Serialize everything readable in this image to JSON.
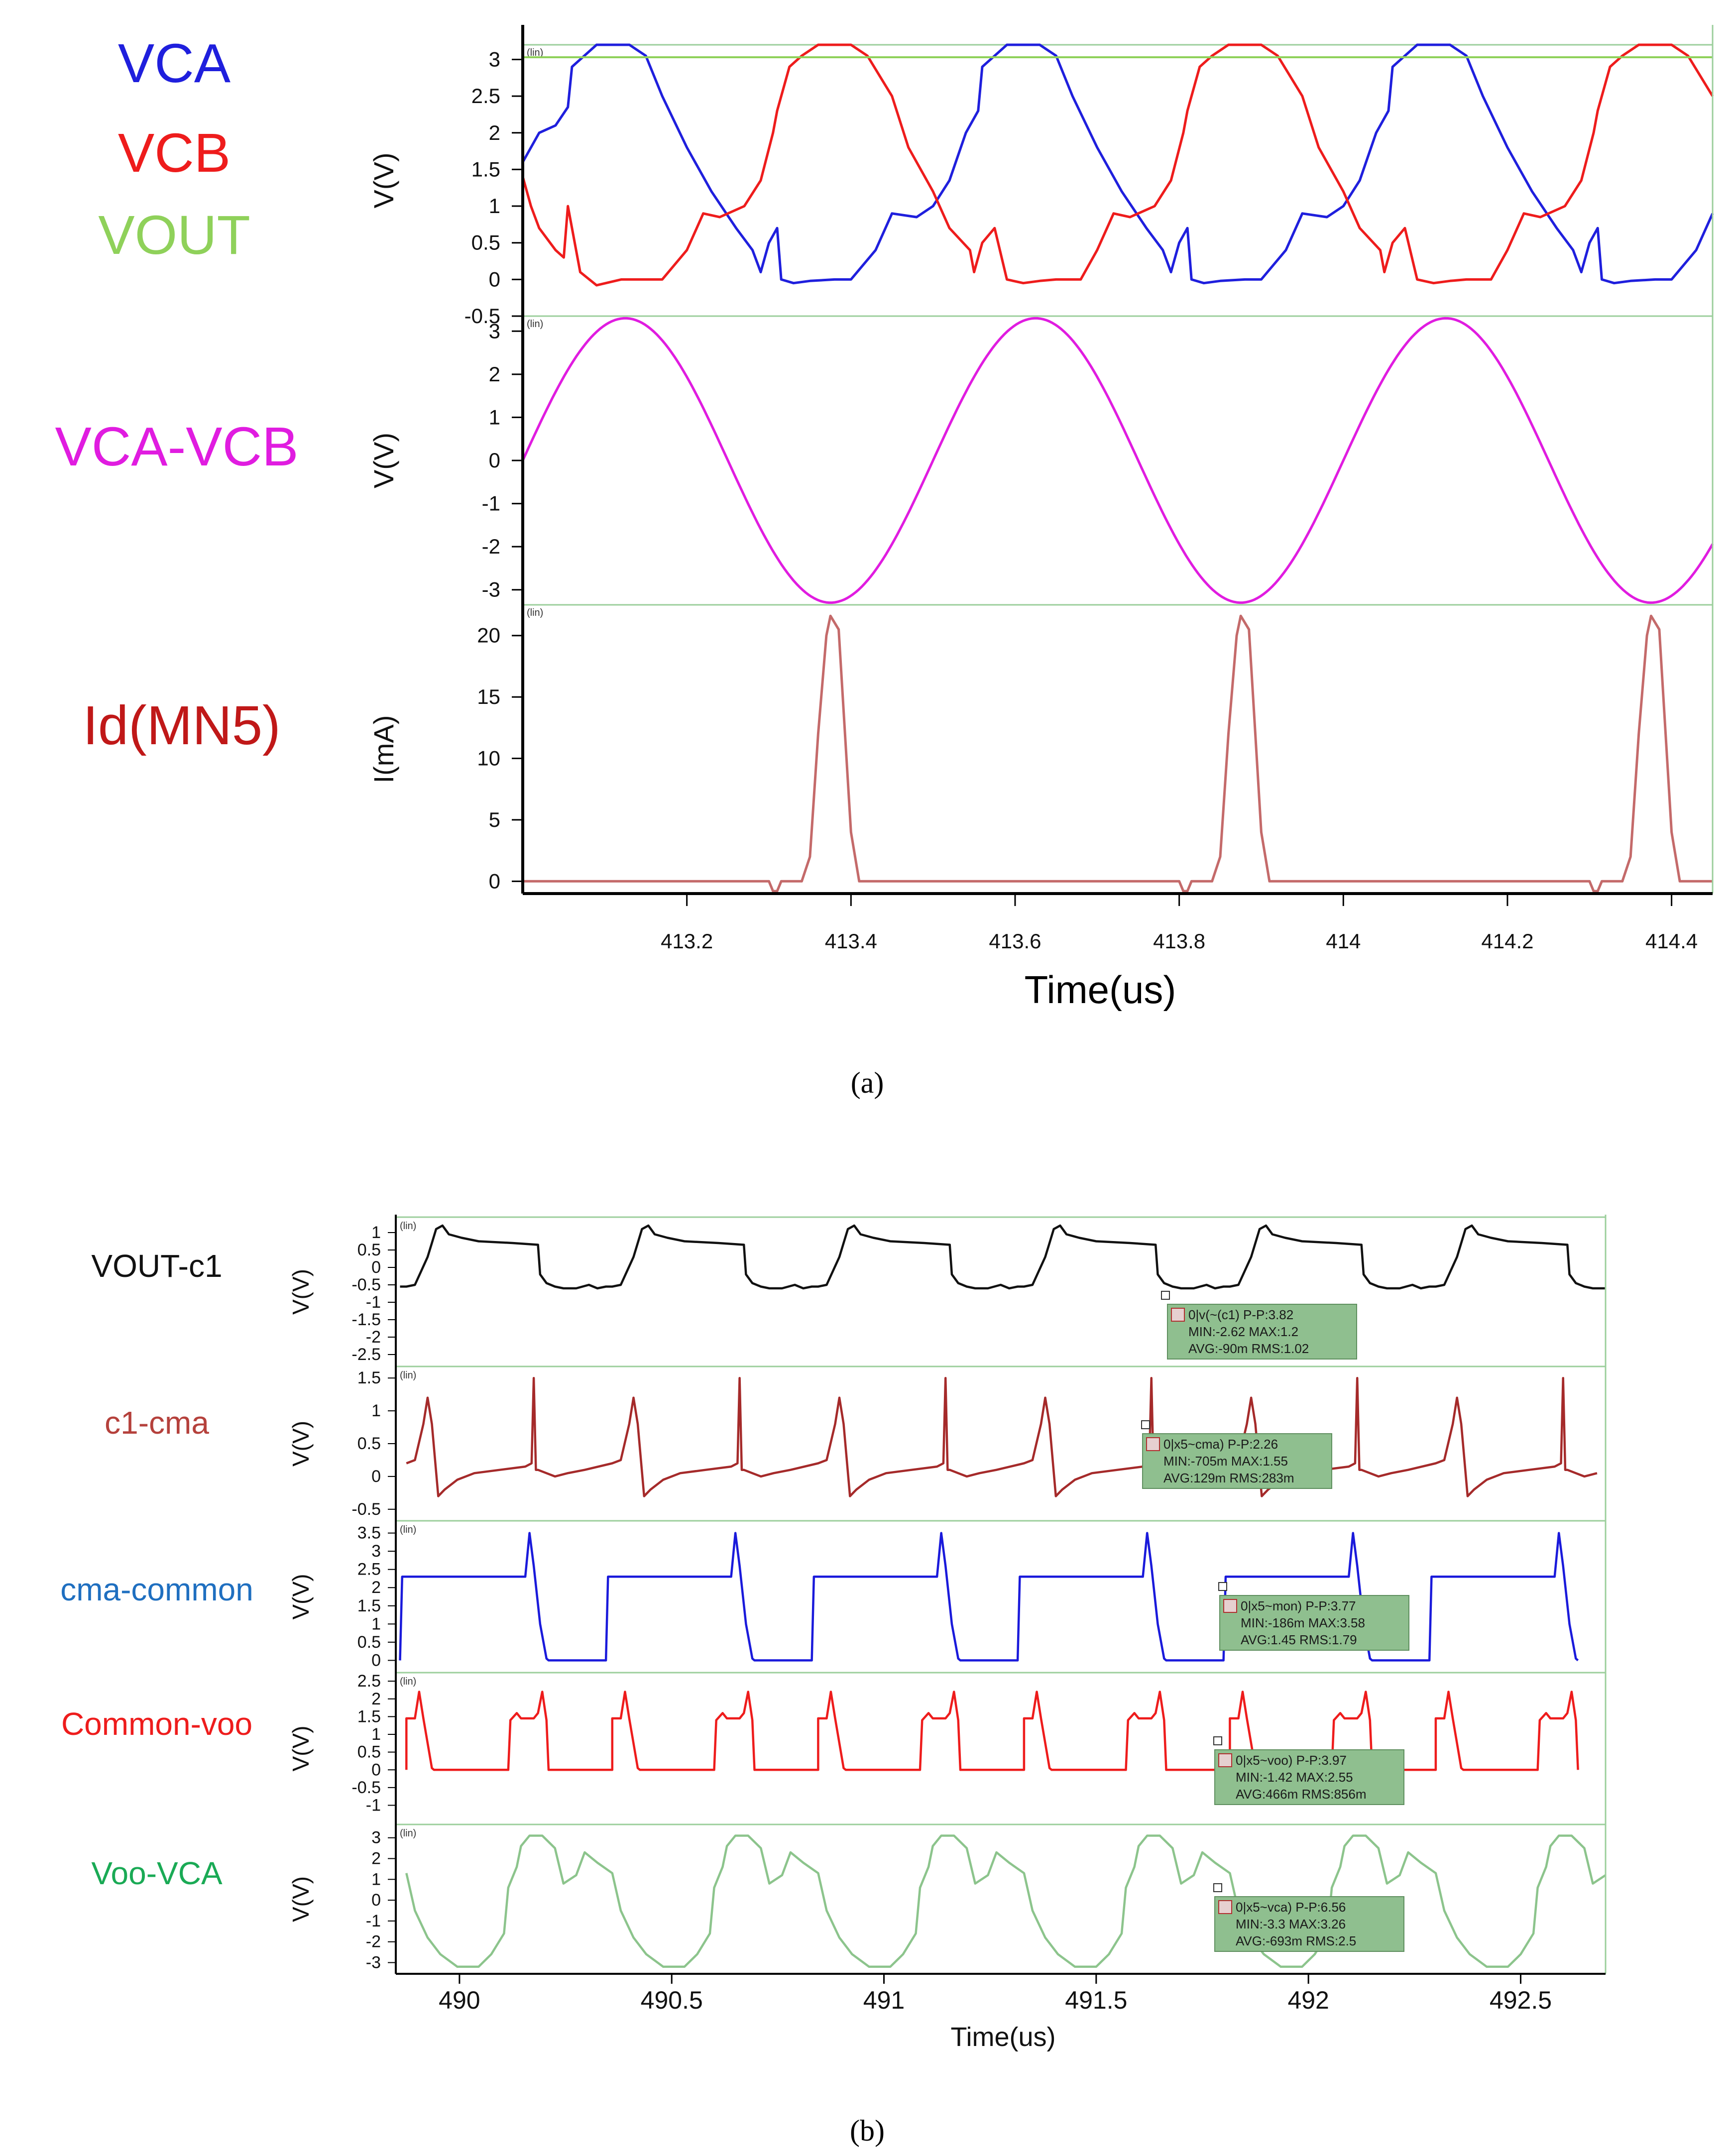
{
  "captions": {
    "a": "(a)",
    "b": "(b)"
  },
  "chart_data": [
    {
      "id": "a",
      "type": "line",
      "xlabel": "Time(us)",
      "xlim": [
        413.0,
        414.45
      ],
      "xticks": [
        413.2,
        413.4,
        413.6,
        413.8,
        414,
        414.2,
        414.4
      ],
      "xtick_labels": [
        "413.2",
        "413.4",
        "413.6",
        "413.8",
        "414",
        "414.2",
        "414.4"
      ],
      "scale_tag": "(lin)",
      "panels": [
        {
          "ylabel": "V(V)",
          "ylim": [
            -0.5,
            3.2
          ],
          "yticks": [
            3,
            2.5,
            2,
            1.5,
            1,
            0.5,
            0,
            -0.5
          ],
          "ytick_labels": [
            "3",
            "2.5",
            "2",
            "1.5",
            "1",
            "0.5",
            "0",
            "-0.5"
          ],
          "series": [
            {
              "name": "VCA",
              "color": "#1f1fdd",
              "x": [
                413.0,
                413.02,
                413.04,
                413.055,
                413.06,
                413.075,
                413.09,
                413.11,
                413.13,
                413.15,
                413.17,
                413.2,
                413.23,
                413.26,
                413.28,
                413.29,
                413.3,
                413.31,
                413.315,
                413.33,
                413.35,
                413.38,
                413.4,
                413.43,
                413.45,
                413.48,
                413.5,
                413.52,
                413.54,
                413.555,
                413.56,
                413.575,
                413.59,
                413.61,
                413.63,
                413.65,
                413.67,
                413.7,
                413.73,
                413.76,
                413.78,
                413.79,
                413.8,
                413.81,
                413.815,
                413.83,
                413.85,
                413.88,
                413.9,
                413.93,
                413.95,
                413.98,
                414.0,
                414.02,
                414.04,
                414.055,
                414.06,
                414.075,
                414.09,
                414.11,
                414.13,
                414.15,
                414.17,
                414.2,
                414.23,
                414.26,
                414.28,
                414.29,
                414.3,
                414.31,
                414.315,
                414.33,
                414.35,
                414.38,
                414.4,
                414.43,
                414.45
              ],
              "y": [
                1.6,
                2.0,
                2.1,
                2.35,
                2.9,
                3.05,
                3.2,
                3.25,
                3.2,
                3.05,
                2.5,
                1.8,
                1.2,
                0.7,
                0.4,
                0.1,
                0.5,
                0.7,
                0.0,
                -0.05,
                -0.02,
                0.0,
                0.0,
                0.4,
                0.9,
                0.85,
                1.0,
                1.35,
                2.0,
                2.3,
                2.9,
                3.05,
                3.2,
                3.25,
                3.2,
                3.05,
                2.5,
                1.8,
                1.2,
                0.7,
                0.4,
                0.1,
                0.5,
                0.7,
                0.0,
                -0.05,
                -0.02,
                0.0,
                0.0,
                0.4,
                0.9,
                0.85,
                1.0,
                1.35,
                2.0,
                2.3,
                2.9,
                3.05,
                3.2,
                3.25,
                3.2,
                3.05,
                2.5,
                1.8,
                1.2,
                0.7,
                0.4,
                0.1,
                0.5,
                0.7,
                0.0,
                -0.05,
                -0.02,
                0.0,
                0.0,
                0.4,
                0.9
              ]
            },
            {
              "name": "VCB",
              "color": "#ee1c1c",
              "x": [
                413.0,
                413.01,
                413.02,
                413.04,
                413.05,
                413.055,
                413.07,
                413.09,
                413.12,
                413.14,
                413.17,
                413.2,
                413.22,
                413.24,
                413.27,
                413.29,
                413.305,
                413.31,
                413.325,
                413.34,
                413.36,
                413.38,
                413.4,
                413.42,
                413.45,
                413.47,
                413.5,
                413.52,
                413.545,
                413.55,
                413.56,
                413.575,
                413.59,
                413.61,
                413.63,
                413.65,
                413.68,
                413.7,
                413.72,
                413.74,
                413.77,
                413.79,
                413.805,
                413.81,
                413.825,
                413.84,
                413.86,
                413.88,
                413.9,
                413.92,
                413.95,
                413.97,
                414.0,
                414.02,
                414.045,
                414.05,
                414.06,
                414.075,
                414.09,
                414.11,
                414.13,
                414.15,
                414.18,
                414.2,
                414.22,
                414.24,
                414.27,
                414.29,
                414.305,
                414.31,
                414.325,
                414.34,
                414.36,
                414.38,
                414.4,
                414.42,
                414.45
              ],
              "y": [
                1.4,
                1.0,
                0.7,
                0.4,
                0.3,
                1.0,
                0.1,
                -0.08,
                0.0,
                0.0,
                0.0,
                0.4,
                0.9,
                0.85,
                1.0,
                1.35,
                2.0,
                2.3,
                2.9,
                3.05,
                3.2,
                3.25,
                3.2,
                3.05,
                2.5,
                1.8,
                1.2,
                0.7,
                0.4,
                0.1,
                0.5,
                0.7,
                0.0,
                -0.05,
                -0.02,
                0.0,
                0.0,
                0.4,
                0.9,
                0.85,
                1.0,
                1.35,
                2.0,
                2.3,
                2.9,
                3.05,
                3.2,
                3.25,
                3.2,
                3.05,
                2.5,
                1.8,
                1.2,
                0.7,
                0.4,
                0.1,
                0.5,
                0.7,
                0.0,
                -0.05,
                -0.02,
                0.0,
                0.0,
                0.4,
                0.9,
                0.85,
                1.0,
                1.35,
                2.0,
                2.3,
                2.9,
                3.05,
                3.2,
                3.25,
                3.2,
                3.05,
                2.5
              ]
            },
            {
              "name": "VOUT",
              "color": "#8fd15a",
              "x": [
                413.0,
                414.45
              ],
              "y": [
                3.03,
                3.03
              ]
            }
          ]
        },
        {
          "ylabel": "V(V)",
          "ylim": [
            -3.35,
            3.35
          ],
          "yticks": [
            3,
            2,
            1,
            0,
            -1,
            -2,
            -3
          ],
          "ytick_labels": [
            "3",
            "2",
            "1",
            "0",
            "-1",
            "-2",
            "-3"
          ],
          "series": [
            {
              "name": "VCA-VCB",
              "color": "#e01ce0",
              "function": "sine",
              "amplitude": 3.3,
              "period_us": 0.5,
              "peak_at_us": 413.125
            }
          ]
        },
        {
          "ylabel": "I(mA)",
          "ylim": [
            -1,
            22.5
          ],
          "yticks": [
            20,
            15,
            10,
            5,
            0
          ],
          "ytick_labels": [
            "20",
            "15",
            "10",
            "5",
            "0"
          ],
          "series": [
            {
              "name": "Id(MN5)",
              "color": "#c46a6a",
              "x": [
                413.0,
                413.3,
                413.305,
                413.31,
                413.315,
                413.34,
                413.35,
                413.36,
                413.37,
                413.375,
                413.385,
                413.39,
                413.4,
                413.41,
                413.44,
                413.8,
                413.805,
                413.81,
                413.815,
                413.84,
                413.85,
                413.86,
                413.87,
                413.875,
                413.885,
                413.89,
                413.9,
                413.91,
                413.94,
                414.3,
                414.305,
                414.31,
                414.315,
                414.34,
                414.35,
                414.36,
                414.37,
                414.375,
                414.385,
                414.39,
                414.4,
                414.41,
                414.45
              ],
              "y": [
                0,
                0,
                -0.8,
                -0.8,
                0,
                0,
                2,
                12,
                20,
                21.6,
                20.5,
                15,
                4,
                0,
                0,
                0,
                -0.8,
                -0.8,
                0,
                0,
                2,
                12,
                20,
                21.6,
                20.5,
                15,
                4,
                0,
                0,
                0,
                -0.8,
                -0.8,
                0,
                0,
                2,
                12,
                20,
                21.6,
                20.5,
                15,
                4,
                0,
                0
              ]
            }
          ]
        }
      ]
    },
    {
      "id": "b",
      "type": "line",
      "xlabel": "Time(us)",
      "xlim": [
        489.85,
        492.7
      ],
      "xticks": [
        490,
        490.5,
        491,
        491.5,
        492,
        492.5
      ],
      "xtick_labels": [
        "490",
        "490.5",
        "491",
        "491.5",
        "492",
        "492.5"
      ],
      "scale_tag": "(lin)",
      "period_us": 0.485,
      "panels": [
        {
          "name": "VOUT-c1",
          "label_color": "#111111",
          "color": "#111111",
          "ylabel": "V(V)",
          "ylim": [
            -2.7,
            1.3
          ],
          "yticks": [
            1,
            0.5,
            0,
            -0.5,
            -1,
            -1.5,
            -2,
            -2.5
          ],
          "ytick_labels": [
            "1",
            "0.5",
            "0",
            "-0.5",
            "-1",
            "-1.5",
            "-2",
            "-2.5"
          ],
          "shape_x": [
            0,
            0.02,
            0.035,
            0.05,
            0.06,
            0.07,
            0.085,
            0.1,
            0.13,
            0.17,
            0.25,
            0.31,
            0.315,
            0.33,
            0.35,
            0.37,
            0.4,
            0.43,
            0.45,
            0.47,
            0.485
          ],
          "shape_y": [
            -0.55,
            -0.5,
            -0.1,
            0.3,
            0.7,
            1.1,
            1.2,
            0.95,
            0.85,
            0.75,
            0.7,
            0.65,
            -0.2,
            -0.45,
            -0.55,
            -0.6,
            -0.6,
            -0.5,
            -0.6,
            -0.55,
            -0.55
          ],
          "measure": {
            "l1": "0|v(~(c1) P-P:3.82",
            "l2": "MIN:-2.62 MAX:1.2",
            "l3": "AVG:-90m RMS:1.02"
          }
        },
        {
          "name": "c1-cma",
          "label_color": "#b5413c",
          "color": "#a52a2a",
          "ylabel": "V(V)",
          "ylim": [
            -0.6,
            1.6
          ],
          "yticks": [
            1.5,
            1,
            0.5,
            0,
            -0.5
          ],
          "ytick_labels": [
            "1.5",
            "1",
            "0.5",
            "0",
            "-0.5"
          ],
          "shape_x": [
            0,
            0.02,
            0.04,
            0.05,
            0.06,
            0.075,
            0.09,
            0.12,
            0.16,
            0.22,
            0.28,
            0.295,
            0.3,
            0.305,
            0.31,
            0.33,
            0.35,
            0.38,
            0.42,
            0.485
          ],
          "shape_y": [
            0.2,
            0.25,
            0.8,
            1.2,
            0.8,
            -0.3,
            -0.2,
            -0.05,
            0.05,
            0.1,
            0.15,
            0.2,
            1.5,
            0.1,
            0.1,
            0.05,
            0.0,
            0.05,
            0.1,
            0.2
          ],
          "measure": {
            "l1": "0|x5~cma) P-P:2.26",
            "l2": "MIN:-705m MAX:1.55",
            "l3": "AVG:129m RMS:283m"
          }
        },
        {
          "name": "cma-common",
          "label_color": "#1f6fc0",
          "color": "#1a1adb",
          "ylabel": "V(V)",
          "ylim": [
            -0.2,
            3.7
          ],
          "yticks": [
            3.5,
            3,
            2.5,
            2,
            1.5,
            1,
            0.5,
            0
          ],
          "ytick_labels": [
            "3.5",
            "3",
            "2.5",
            "2",
            "1.5",
            "1",
            "0.5",
            "0"
          ],
          "shape_x": [
            0,
            0.28,
            0.29,
            0.3,
            0.315,
            0.33,
            0.335,
            0.47,
            0.475,
            0.485
          ],
          "shape_y": [
            2.3,
            2.3,
            3.5,
            2.6,
            1.0,
            0.05,
            0.0,
            0.0,
            2.3,
            2.3
          ],
          "measure": {
            "l1": "0|x5~mon) P-P:3.77",
            "l2": "MIN:-186m MAX:3.58",
            "l3": "AVG:1.45 RMS:1.79"
          }
        },
        {
          "name": "Common-voo",
          "label_color": "#ee1c1c",
          "color": "#ee1c1c",
          "ylabel": "V(V)",
          "ylim": [
            -1.4,
            2.6
          ],
          "yticks": [
            2.5,
            2,
            1.5,
            1,
            0.5,
            0,
            -0.5,
            -1
          ],
          "ytick_labels": [
            "2.5",
            "2",
            "1.5",
            "1",
            "0.5",
            "0",
            "-0.5",
            "-1"
          ],
          "shape_x": [
            0,
            0.02,
            0.03,
            0.04,
            0.06,
            0.065,
            0.24,
            0.245,
            0.26,
            0.27,
            0.3,
            0.31,
            0.32,
            0.33,
            0.335,
            0.485
          ],
          "shape_y": [
            1.45,
            1.45,
            2.2,
            1.45,
            0.05,
            0.0,
            0.0,
            1.4,
            1.6,
            1.45,
            1.45,
            1.6,
            2.2,
            1.4,
            0.0,
            0.0
          ],
          "measure": {
            "l1": "0|x5~voo) P-P:3.97",
            "l2": "MIN:-1.42 MAX:2.55",
            "l3": "AVG:466m RMS:856m"
          }
        },
        {
          "name": "Voo-VCA",
          "label_color": "#1aaa55",
          "color": "#8cc48c",
          "ylabel": "V(V)",
          "ylim": [
            -3.3,
            3.4
          ],
          "yticks": [
            3,
            2,
            1,
            0,
            -1,
            -2,
            -3
          ],
          "ytick_labels": [
            "3",
            "2",
            "1",
            "0",
            "-1",
            "-2",
            "-3"
          ],
          "shape_x": [
            0,
            0.02,
            0.05,
            0.08,
            0.12,
            0.17,
            0.2,
            0.23,
            0.24,
            0.26,
            0.27,
            0.29,
            0.32,
            0.35,
            0.37,
            0.4,
            0.42,
            0.45,
            0.485
          ],
          "shape_y": [
            1.3,
            -0.5,
            -1.8,
            -2.6,
            -3.2,
            -3.2,
            -2.6,
            -1.6,
            0.6,
            1.6,
            2.6,
            3.1,
            3.1,
            2.5,
            0.8,
            1.2,
            2.3,
            1.8,
            1.3
          ],
          "measure": {
            "l1": "0|x5~vca) P-P:6.56",
            "l2": "MIN:-3.3 MAX:3.26",
            "l3": "AVG:-693m RMS:2.5"
          }
        }
      ]
    }
  ]
}
